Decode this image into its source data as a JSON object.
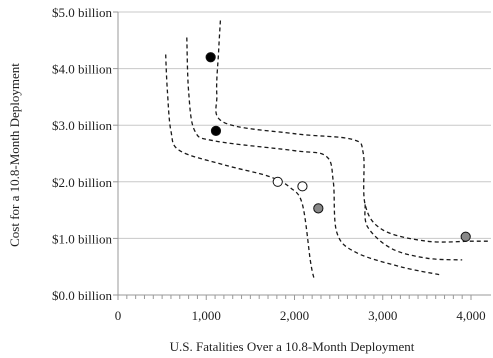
{
  "chart_data": {
    "type": "scatter",
    "title": "",
    "xlabel": "U.S. Fatalities Over a 10.8-Month Deployment",
    "ylabel": "Cost for a  10.8-Month Deployment",
    "xlim": [
      0,
      4000
    ],
    "ylim": [
      0,
      5
    ],
    "x_ticks": [
      {
        "value": 0,
        "label": "0"
      },
      {
        "value": 1000,
        "label": "1,000"
      },
      {
        "value": 2000,
        "label": "2,000"
      },
      {
        "value": 3000,
        "label": "3,000"
      },
      {
        "value": 4000,
        "label": "4,000"
      }
    ],
    "y_ticks": [
      {
        "value": 0,
        "label": "$0.0 billion"
      },
      {
        "value": 1,
        "label": "$1.0 billion"
      },
      {
        "value": 2,
        "label": "$2.0 billion"
      },
      {
        "value": 3,
        "label": "$3.0 billion"
      },
      {
        "value": 4,
        "label": "$4.0 billion"
      },
      {
        "value": 5,
        "label": "$5.0 billion"
      }
    ],
    "grid": "horizontal",
    "legend": "none",
    "series": [
      {
        "marker": "filled-black",
        "color": "#000000",
        "points": [
          [
            1050,
            4.2
          ],
          [
            1110,
            2.9
          ]
        ]
      },
      {
        "marker": "open-white",
        "color": "#ffffff",
        "points": [
          [
            1810,
            2.0
          ],
          [
            2090,
            1.92
          ]
        ]
      },
      {
        "marker": "filled-gray",
        "color": "#888888",
        "points": [
          [
            2270,
            1.53
          ],
          [
            3940,
            1.03
          ]
        ]
      }
    ],
    "curves": [
      {
        "style": "dashed",
        "points": [
          [
            540,
            4.25
          ],
          [
            560,
            3.6
          ],
          [
            600,
            2.9
          ],
          [
            700,
            2.55
          ],
          [
            1200,
            2.3
          ],
          [
            1700,
            2.1
          ],
          [
            1950,
            1.9
          ],
          [
            2090,
            1.6
          ],
          [
            2180,
            0.6
          ],
          [
            2220,
            0.3
          ]
        ]
      },
      {
        "style": "dashed",
        "points": [
          [
            780,
            4.55
          ],
          [
            800,
            3.6
          ],
          [
            870,
            2.9
          ],
          [
            1100,
            2.72
          ],
          [
            2000,
            2.55
          ],
          [
            2360,
            2.45
          ],
          [
            2440,
            2.0
          ],
          [
            2480,
            1.1
          ],
          [
            2700,
            0.75
          ],
          [
            3200,
            0.5
          ],
          [
            3640,
            0.36
          ]
        ]
      },
      {
        "style": "dashed",
        "points": [
          [
            1160,
            4.85
          ],
          [
            1140,
            4.3
          ],
          [
            1120,
            3.55
          ],
          [
            1200,
            3.05
          ],
          [
            2000,
            2.85
          ],
          [
            2650,
            2.75
          ],
          [
            2780,
            2.5
          ],
          [
            2800,
            1.6
          ],
          [
            3000,
            1.15
          ],
          [
            3500,
            0.95
          ],
          [
            4000,
            0.95
          ],
          [
            4200,
            0.95
          ]
        ]
      },
      {
        "style": "dashed",
        "points": [
          [
            2800,
            1.6
          ],
          [
            2830,
            1.2
          ],
          [
            3100,
            0.82
          ],
          [
            3500,
            0.65
          ],
          [
            3900,
            0.62
          ]
        ]
      }
    ]
  },
  "colors": {
    "axis": "#999999",
    "grid": "#c8c8c8",
    "curve": "#1a1a1a",
    "marker_edge": "#111111"
  }
}
